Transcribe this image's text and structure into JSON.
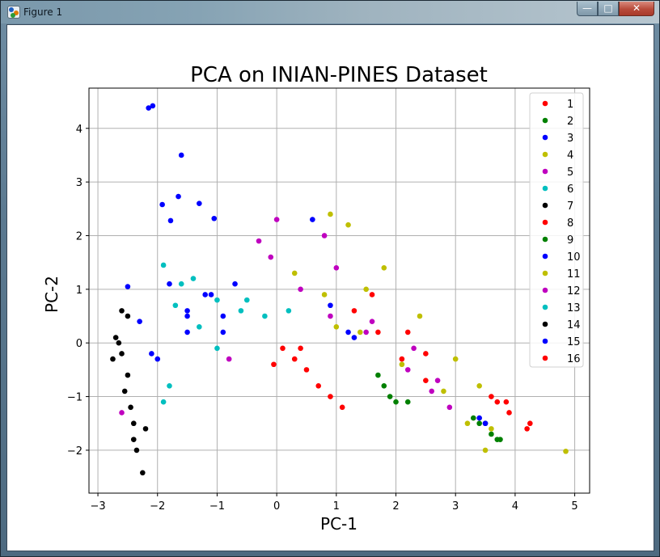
{
  "window": {
    "title": "Figure 1",
    "minimize_glyph": "—",
    "maximize_glyph": "□",
    "close_glyph": "✕",
    "icon": "matplotlib-figure-icon"
  },
  "chart_data": {
    "type": "scatter",
    "title": "PCA on INIAN-PINES Dataset",
    "xlabel": "PC-1",
    "ylabel": "PC-2",
    "xlim": [
      -3.15,
      5.25
    ],
    "ylim": [
      -2.8,
      4.75
    ],
    "xticks": [
      -3,
      -2,
      -1,
      0,
      1,
      2,
      3,
      4,
      5
    ],
    "yticks": [
      -2,
      -1,
      0,
      1,
      2,
      3,
      4
    ],
    "grid": true,
    "legend_position": "top-right",
    "series": [
      {
        "name": "1",
        "color": "#ff0000",
        "points": [
          [
            1.6,
            0.9
          ],
          [
            2.2,
            0.2
          ],
          [
            2.5,
            -0.2
          ],
          [
            3.7,
            -1.1
          ],
          [
            4.2,
            -1.6
          ],
          [
            4.25,
            -1.5
          ],
          [
            3.9,
            -1.3
          ]
        ]
      },
      {
        "name": "2",
        "color": "#008000",
        "points": [
          [
            1.7,
            -0.6
          ],
          [
            1.9,
            -1.0
          ],
          [
            2.2,
            -1.1
          ],
          [
            3.3,
            -1.4
          ],
          [
            3.6,
            -1.7
          ],
          [
            3.7,
            -1.8
          ],
          [
            3.5,
            -1.5
          ]
        ]
      },
      {
        "name": "3",
        "color": "#0000ff",
        "points": [
          [
            -2.15,
            4.38
          ],
          [
            -2.08,
            4.42
          ],
          [
            -1.6,
            3.5
          ],
          [
            -1.65,
            2.73
          ],
          [
            -1.3,
            2.6
          ],
          [
            -1.92,
            2.58
          ],
          [
            -1.78,
            2.28
          ],
          [
            -1.05,
            2.32
          ],
          [
            -1.1,
            0.9
          ],
          [
            -0.7,
            1.1
          ],
          [
            -1.5,
            0.6
          ],
          [
            0.6,
            2.3
          ],
          [
            1.2,
            0.2
          ]
        ]
      },
      {
        "name": "4",
        "color": "#bfbf00",
        "points": [
          [
            0.9,
            2.4
          ],
          [
            1.2,
            2.2
          ],
          [
            1.8,
            1.4
          ],
          [
            2.4,
            0.5
          ],
          [
            3.0,
            -0.3
          ],
          [
            3.4,
            -0.8
          ],
          [
            3.6,
            -1.6
          ],
          [
            3.5,
            -2.0
          ],
          [
            4.85,
            -2.02
          ],
          [
            1.0,
            0.3
          ]
        ]
      },
      {
        "name": "5",
        "color": "#bf00bf",
        "points": [
          [
            0.8,
            2.0
          ],
          [
            1.0,
            1.4
          ],
          [
            1.5,
            0.2
          ],
          [
            2.2,
            -0.5
          ],
          [
            2.6,
            -0.9
          ],
          [
            2.9,
            -1.2
          ],
          [
            0.0,
            2.3
          ],
          [
            -0.3,
            1.9
          ]
        ]
      },
      {
        "name": "6",
        "color": "#00bfbf",
        "points": [
          [
            -1.9,
            1.45
          ],
          [
            -1.6,
            1.1
          ],
          [
            -1.3,
            0.3
          ],
          [
            -1.0,
            -0.1
          ],
          [
            -0.5,
            0.8
          ],
          [
            -1.8,
            -0.8
          ],
          [
            -1.9,
            -1.1
          ]
        ]
      },
      {
        "name": "7",
        "color": "#000000",
        "points": [
          [
            -2.5,
            0.5
          ],
          [
            -2.6,
            -0.2
          ],
          [
            -2.55,
            -0.9
          ],
          [
            -2.4,
            -1.5
          ],
          [
            -2.35,
            -2.0
          ],
          [
            -2.25,
            -2.42
          ],
          [
            -2.7,
            0.1
          ]
        ]
      },
      {
        "name": "8",
        "color": "#ff0000",
        "points": [
          [
            0.1,
            -0.1
          ],
          [
            0.3,
            -0.3
          ],
          [
            0.5,
            -0.5
          ],
          [
            0.7,
            -0.8
          ],
          [
            0.9,
            -1.0
          ],
          [
            1.1,
            -1.2
          ],
          [
            -0.05,
            -0.4
          ],
          [
            0.4,
            -0.1
          ]
        ]
      },
      {
        "name": "9",
        "color": "#008000",
        "points": [
          [
            1.8,
            -0.8
          ],
          [
            2.0,
            -1.1
          ],
          [
            3.4,
            -1.5
          ],
          [
            3.75,
            -1.8
          ]
        ]
      },
      {
        "name": "10",
        "color": "#0000ff",
        "points": [
          [
            -1.8,
            1.1
          ],
          [
            -1.2,
            0.9
          ],
          [
            -0.9,
            0.5
          ],
          [
            -1.5,
            0.2
          ],
          [
            -2.0,
            -0.3
          ],
          [
            0.9,
            0.7
          ],
          [
            1.3,
            0.1
          ]
        ]
      },
      {
        "name": "11",
        "color": "#bfbf00",
        "points": [
          [
            0.3,
            1.3
          ],
          [
            0.8,
            0.9
          ],
          [
            1.4,
            0.2
          ],
          [
            2.1,
            -0.4
          ],
          [
            2.8,
            -0.9
          ],
          [
            3.2,
            -1.5
          ],
          [
            1.5,
            1.0
          ]
        ]
      },
      {
        "name": "12",
        "color": "#bf00bf",
        "points": [
          [
            -0.1,
            1.6
          ],
          [
            0.4,
            1.0
          ],
          [
            0.9,
            0.5
          ],
          [
            1.6,
            0.4
          ],
          [
            2.3,
            -0.1
          ],
          [
            2.7,
            -0.7
          ],
          [
            -0.8,
            -0.3
          ],
          [
            -2.6,
            -1.3
          ]
        ]
      },
      {
        "name": "13",
        "color": "#00bfbf",
        "points": [
          [
            -1.4,
            1.2
          ],
          [
            -1.0,
            0.8
          ],
          [
            -0.6,
            0.6
          ],
          [
            -0.2,
            0.5
          ],
          [
            0.2,
            0.6
          ],
          [
            -1.7,
            0.7
          ]
        ]
      },
      {
        "name": "14",
        "color": "#000000",
        "points": [
          [
            -2.6,
            0.6
          ],
          [
            -2.65,
            0.0
          ],
          [
            -2.5,
            -0.6
          ],
          [
            -2.45,
            -1.2
          ],
          [
            -2.4,
            -1.8
          ],
          [
            -2.2,
            -1.6
          ],
          [
            -2.75,
            -0.3
          ]
        ]
      },
      {
        "name": "15",
        "color": "#0000ff",
        "points": [
          [
            -2.5,
            1.05
          ],
          [
            -2.3,
            0.4
          ],
          [
            -2.1,
            -0.2
          ],
          [
            -1.5,
            0.5
          ],
          [
            -0.9,
            0.2
          ],
          [
            3.4,
            -1.4
          ],
          [
            3.5,
            -1.5
          ]
        ]
      },
      {
        "name": "16",
        "color": "#ff0000",
        "points": [
          [
            1.3,
            0.6
          ],
          [
            1.7,
            0.2
          ],
          [
            2.1,
            -0.3
          ],
          [
            2.5,
            -0.7
          ],
          [
            3.6,
            -1.0
          ],
          [
            3.85,
            -1.1
          ]
        ]
      }
    ]
  }
}
